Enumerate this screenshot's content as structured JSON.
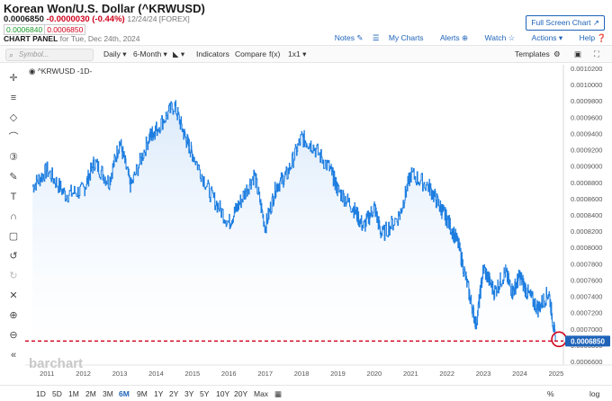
{
  "header": {
    "title": "Korean Won/U.S. Dollar (^KRWUSD)",
    "last": "0.0006850",
    "change": "-0.0000030 (-0.44%)",
    "meta": "12/24/24 [FOREX]",
    "bid": "0.0006840",
    "ask": "0.0006850",
    "panel_label": "CHART PANEL",
    "panel_date": "for Tue, Dec 24th, 2024",
    "fullscreen_label": "Full Screen Chart",
    "links": [
      "Notes",
      "My Charts",
      "Alerts",
      "Watch",
      "Actions",
      "Help"
    ]
  },
  "toolbar": {
    "search_placeholder": "Symbol...",
    "frequency": "Daily",
    "period": "6-Month",
    "indicators": "Indicators",
    "compare": "Compare",
    "fx": "f(x)",
    "layout": "1x1",
    "templates": "Templates"
  },
  "chart": {
    "legend": "^KRWUSD -1D-",
    "watermark": "barchart",
    "last_price_label": "0.0006850",
    "accent_color": "#1e7ee0",
    "fill_color": "#d8e8fa",
    "last_price_color": "#d0021b"
  },
  "chart_data": {
    "type": "line",
    "title": "Korean Won/U.S. Dollar (^KRWUSD)",
    "x": [
      2010.6,
      2011.0,
      2011.5,
      2012.0,
      2012.3,
      2012.7,
      2013.0,
      2013.3,
      2013.8,
      2014.0,
      2014.5,
      2014.8,
      2015.0,
      2015.5,
      2016.0,
      2016.3,
      2016.7,
      2017.0,
      2017.3,
      2017.6,
      2018.0,
      2018.3,
      2018.8,
      2019.0,
      2019.4,
      2019.7,
      2020.0,
      2020.2,
      2020.7,
      2021.0,
      2021.5,
      2021.8,
      2022.0,
      2022.3,
      2022.6,
      2022.8,
      2023.0,
      2023.3,
      2023.6,
      2023.8,
      2024.0,
      2024.2,
      2024.5,
      2024.8,
      2024.98
    ],
    "y": [
      0.000875,
      0.000895,
      0.000865,
      0.00087,
      0.000905,
      0.00088,
      0.00093,
      0.000875,
      0.000935,
      0.000945,
      0.000975,
      0.000935,
      0.000915,
      0.000865,
      0.00083,
      0.000855,
      0.00089,
      0.000825,
      0.000875,
      0.00089,
      0.000935,
      0.000925,
      0.000895,
      0.00087,
      0.00085,
      0.000825,
      0.00085,
      0.000815,
      0.00084,
      0.00089,
      0.000875,
      0.00085,
      0.000835,
      0.000805,
      0.000745,
      0.000705,
      0.000775,
      0.000745,
      0.00077,
      0.000745,
      0.000765,
      0.000745,
      0.000725,
      0.000745,
      0.000685
    ],
    "ylim": [
      0.00066,
      0.00102
    ],
    "xlim": [
      2010.4,
      2025.2
    ],
    "x_ticks": [
      "2011",
      "2012",
      "2013",
      "2014",
      "2015",
      "2016",
      "2017",
      "2018",
      "2019",
      "2020",
      "2021",
      "2022",
      "2023",
      "2024",
      "2025"
    ],
    "y_ticks": [
      "0.0010200",
      "0.0010000",
      "0.0009800",
      "0.0009600",
      "0.0009400",
      "0.0009200",
      "0.0009000",
      "0.0008800",
      "0.0008600",
      "0.0008400",
      "0.0008200",
      "0.0008000",
      "0.0007800",
      "0.0007600",
      "0.0007400",
      "0.0007200",
      "0.0007000",
      "0.0006800",
      "0.0006600"
    ],
    "last_value": 0.000685
  },
  "periods": [
    "1D",
    "5D",
    "1M",
    "2M",
    "3M",
    "6M",
    "9M",
    "1Y",
    "2Y",
    "3Y",
    "5Y",
    "10Y",
    "20Y",
    "Max"
  ],
  "selected_period": "6M",
  "scale_options": [
    "%",
    "log"
  ]
}
